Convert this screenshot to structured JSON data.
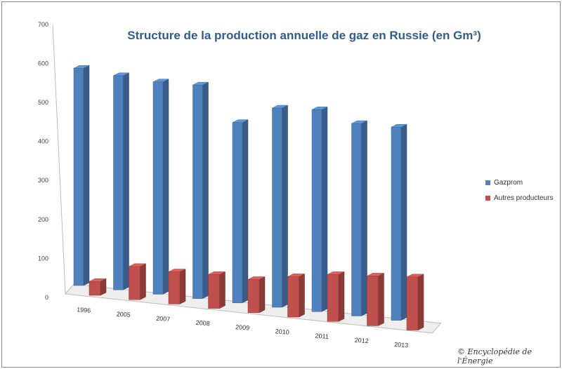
{
  "chart_data": {
    "type": "bar",
    "title": "Structure de la production annuelle de gaz en Russie (en Gm³)",
    "categories": [
      "1996",
      "2005",
      "2007",
      "2008",
      "2009",
      "2010",
      "2011",
      "2012",
      "2013"
    ],
    "series": [
      {
        "name": "Gazprom",
        "values": [
          565,
          555,
          548,
          549,
          462,
          508,
          513,
          487,
          487
        ],
        "color": "#4f81bd"
      },
      {
        "name": "Autres producteurs",
        "values": [
          36,
          86,
          83,
          87,
          85,
          103,
          119,
          126,
          134
        ],
        "color": "#c0504d"
      }
    ],
    "ylim": [
      0,
      700
    ],
    "yticks": [
      0,
      100,
      200,
      300,
      400,
      500,
      600,
      700
    ],
    "grid": false,
    "legend": "right"
  },
  "credit": "© Encyclopédie de l'Énergie"
}
